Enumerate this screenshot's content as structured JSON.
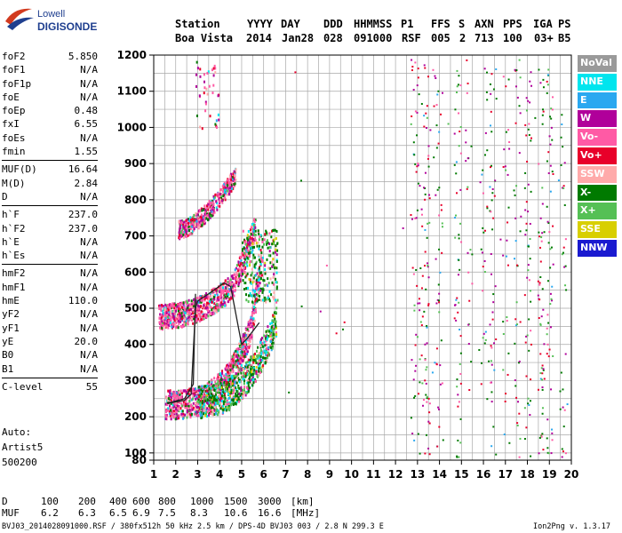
{
  "logo": {
    "line1": "Lowell",
    "line2": "DIGISONDE"
  },
  "header": {
    "labels": [
      "Station",
      "YYYY",
      "DAY",
      "DDD",
      "HHMMSS",
      "P1",
      "FFS",
      "S",
      "AXN",
      "PPS",
      "IGA",
      "PS"
    ],
    "values": [
      "Boa Vista",
      "2014",
      "Jan28",
      "028",
      "091000",
      "RSF",
      "005",
      "2",
      "713",
      "100",
      "03+",
      "B5"
    ]
  },
  "parameters": {
    "group1": [
      {
        "name": "foF2",
        "value": "5.850"
      },
      {
        "name": "foF1",
        "value": "N/A"
      },
      {
        "name": "foF1p",
        "value": "N/A"
      },
      {
        "name": "foE",
        "value": "N/A"
      },
      {
        "name": "foEp",
        "value": "0.48"
      },
      {
        "name": "fxI",
        "value": "6.55"
      },
      {
        "name": "foEs",
        "value": "N/A"
      },
      {
        "name": "fmin",
        "value": "1.55"
      }
    ],
    "group2": [
      {
        "name": "MUF(D)",
        "value": "16.64"
      },
      {
        "name": "M(D)",
        "value": "2.84"
      },
      {
        "name": "D",
        "value": "N/A"
      }
    ],
    "group3": [
      {
        "name": "h`F",
        "value": "237.0"
      },
      {
        "name": "h`F2",
        "value": "237.0"
      },
      {
        "name": "h`E",
        "value": "N/A"
      },
      {
        "name": "h`Es",
        "value": "N/A"
      }
    ],
    "group4": [
      {
        "name": "hmF2",
        "value": "N/A"
      },
      {
        "name": "hmF1",
        "value": "N/A"
      },
      {
        "name": "hmE",
        "value": "110.0"
      },
      {
        "name": "yF2",
        "value": "N/A"
      },
      {
        "name": "yF1",
        "value": "N/A"
      },
      {
        "name": "yE",
        "value": "20.0"
      },
      {
        "name": "B0",
        "value": "N/A"
      },
      {
        "name": "B1",
        "value": "N/A"
      }
    ],
    "group5": [
      {
        "name": "C-level",
        "value": "55"
      }
    ]
  },
  "auto": {
    "line1": "Auto:",
    "line2": "Artist5",
    "line3": "500200"
  },
  "legend": [
    {
      "label": "NoVal",
      "color": "#9a9a9a"
    },
    {
      "label": "NNE",
      "color": "#00e5ee"
    },
    {
      "label": "E",
      "color": "#2aa8f0"
    },
    {
      "label": "W",
      "color": "#b0009a"
    },
    {
      "label": "Vo-",
      "color": "#ff5aa5"
    },
    {
      "label": "Vo+",
      "color": "#e8002a"
    },
    {
      "label": "SSW",
      "color": "#ffaaaa"
    },
    {
      "label": "X-",
      "color": "#007a00"
    },
    {
      "label": "X+",
      "color": "#55c055"
    },
    {
      "label": "SSE",
      "color": "#d8cf00"
    },
    {
      "label": "NNW",
      "color": "#1a1ad0"
    }
  ],
  "muf_table": {
    "d_label": "D",
    "d_values": [
      "100",
      "200",
      "400",
      "600",
      "800",
      "1000",
      "1500",
      "3000"
    ],
    "d_unit": "[km]",
    "muf_label": "MUF",
    "muf_values": [
      "6.2",
      "6.3",
      "6.5",
      "6.9",
      "7.5",
      "8.3",
      "10.6",
      "16.6"
    ],
    "muf_unit": "[MHz]"
  },
  "footer": {
    "left": "BVJ03_2014028091000.RSF / 380fx512h 50 kHz 2.5 km / DPS-4D BVJ03 003 / 2.8 N 299.3 E",
    "right": "Ion2Png v. 1.3.17"
  },
  "chart_data": {
    "type": "scatter",
    "title": "",
    "xlabel": "",
    "ylabel": "",
    "xlim": [
      1,
      20
    ],
    "ylim": [
      80,
      1200
    ],
    "x_ticks": [
      1,
      2,
      3,
      4,
      5,
      6,
      7,
      8,
      9,
      10,
      11,
      12,
      13,
      14,
      15,
      16,
      17,
      18,
      19,
      20
    ],
    "y_ticks": [
      80,
      100,
      200,
      300,
      400,
      500,
      600,
      700,
      800,
      900,
      1000,
      1100,
      1200
    ],
    "x_grid_step": 0.5,
    "y_grid_step": 50,
    "grid": true,
    "traces": [
      {
        "name": "O-trace band F2",
        "freq_range": [
          1.5,
          5.85
        ],
        "height_range": [
          237,
          580
        ]
      },
      {
        "name": "O-trace band 2nd hop",
        "freq_range": [
          1.2,
          5.2
        ],
        "height_range": [
          470,
          700
        ]
      },
      {
        "name": "O-trace band 3rd hop",
        "freq_range": [
          2.1,
          4.7
        ],
        "height_range": [
          720,
          900
        ]
      },
      {
        "name": "X-trace band F2",
        "freq_range": [
          3.0,
          6.55
        ],
        "height_range": [
          237,
          480
        ]
      }
    ],
    "profile_line": [
      {
        "x": 1.6,
        "y": 237
      },
      {
        "x": 2.4,
        "y": 245
      },
      {
        "x": 2.7,
        "y": 262
      },
      {
        "x": 2.9,
        "y": 500
      },
      {
        "x": 3.0,
        "y": 520
      },
      {
        "x": 3.5,
        "y": 540
      },
      {
        "x": 4.2,
        "y": 570
      },
      {
        "x": 4.5,
        "y": 560
      },
      {
        "x": 5.0,
        "y": 400
      },
      {
        "x": 5.3,
        "y": 420
      },
      {
        "x": 5.8,
        "y": 460
      }
    ],
    "profile_line2": [
      {
        "x": 1.6,
        "y": 237
      },
      {
        "x": 2.4,
        "y": 250
      },
      {
        "x": 2.6,
        "y": 270
      },
      {
        "x": 2.8,
        "y": 290
      },
      {
        "x": 2.9,
        "y": 540
      }
    ]
  }
}
